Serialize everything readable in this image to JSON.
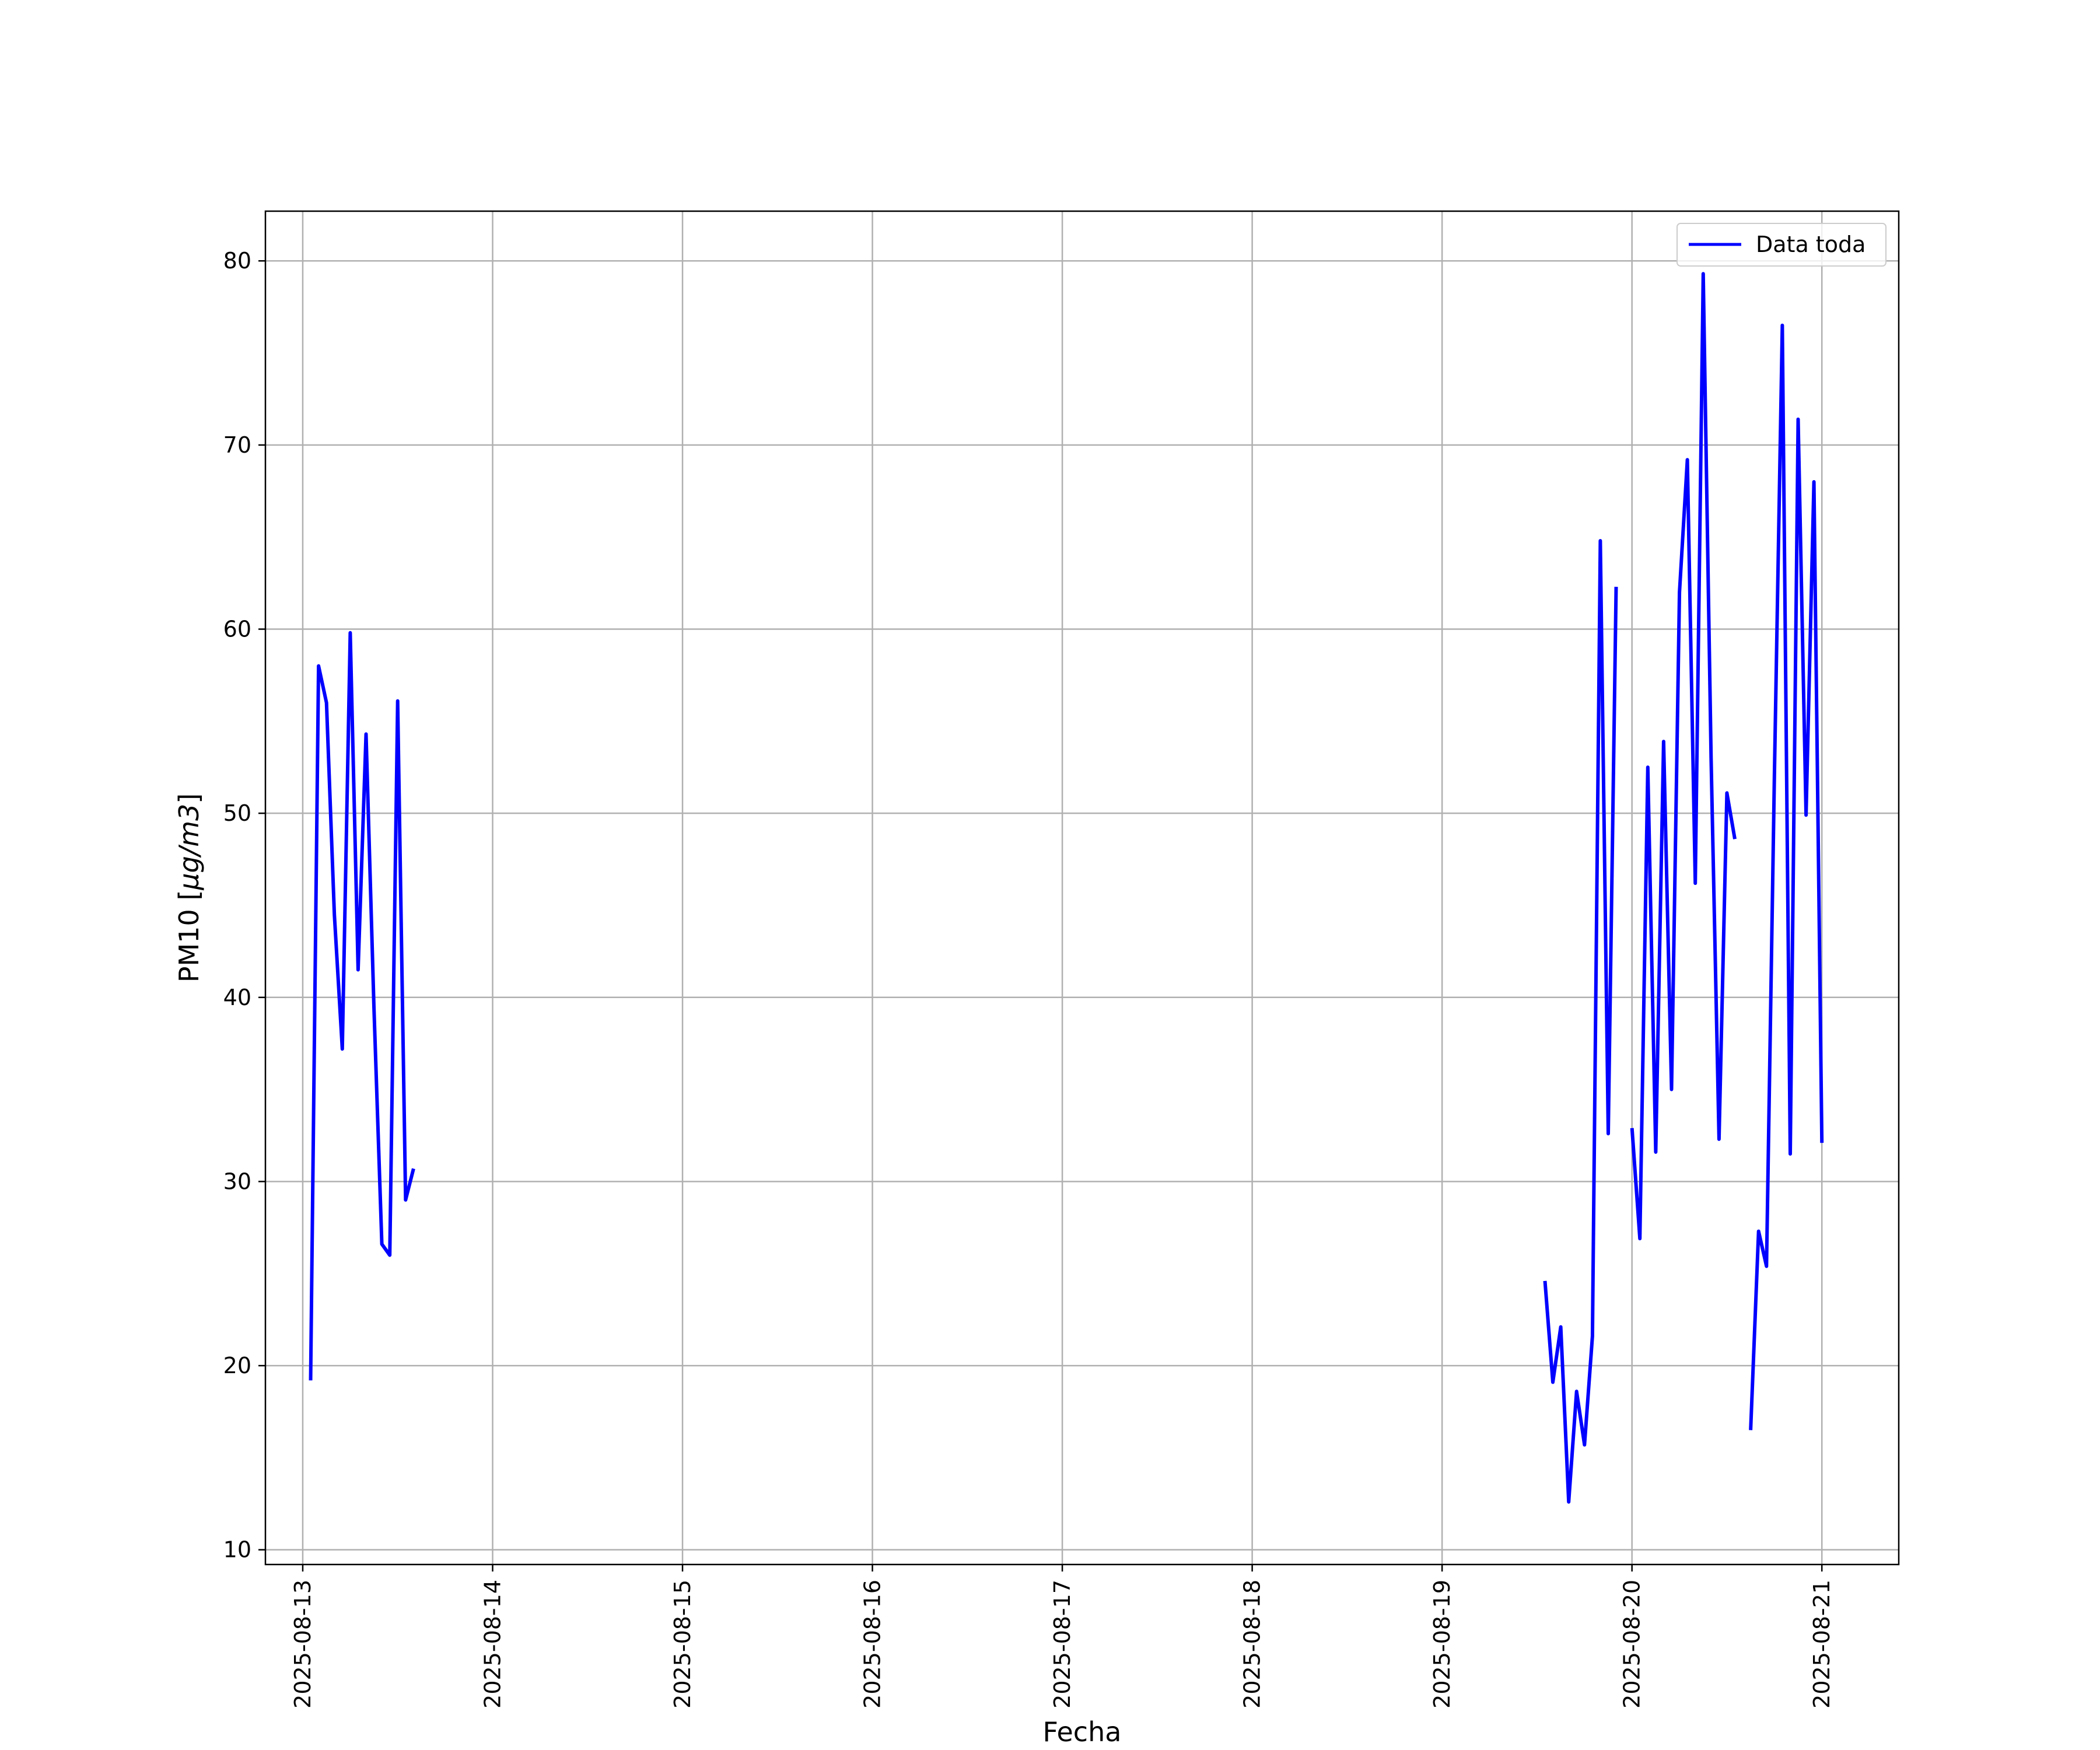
{
  "chart_data": {
    "type": "line",
    "xlabel": "Fecha",
    "ylabel": "PM10 [μg/m3]",
    "ylabel_prefix": "PM10 [",
    "ylabel_math": "μg/m3",
    "ylabel_suffix": "]",
    "xlim": [
      "2025-08-12T19:17",
      "2025-08-21T09:43"
    ],
    "ylim": [
      9.2,
      82.7
    ],
    "grid": true,
    "legend_position": "top-right",
    "x_ticks": [
      "2025-08-13",
      "2025-08-14",
      "2025-08-15",
      "2025-08-16",
      "2025-08-17",
      "2025-08-18",
      "2025-08-19",
      "2025-08-20",
      "2025-08-21"
    ],
    "y_ticks": [
      10,
      20,
      30,
      40,
      50,
      60,
      70,
      80
    ],
    "series": [
      {
        "name": "Data toda",
        "color": "#0000ff",
        "segments": [
          {
            "x": [
              "2025-08-13T01:00",
              "2025-08-13T02:00",
              "2025-08-13T03:00",
              "2025-08-13T04:00",
              "2025-08-13T05:00",
              "2025-08-13T06:00",
              "2025-08-13T07:00",
              "2025-08-13T08:00",
              "2025-08-13T09:00",
              "2025-08-13T10:00",
              "2025-08-13T11:00",
              "2025-08-13T12:00",
              "2025-08-13T13:00",
              "2025-08-13T14:00"
            ],
            "y": [
              19.2,
              58.0,
              56.0,
              44.5,
              37.2,
              59.8,
              41.5,
              54.3,
              39.5,
              26.6,
              26.0,
              56.1,
              29.0,
              30.7
            ]
          },
          {
            "x": [
              "2025-08-19T13:00",
              "2025-08-19T14:00",
              "2025-08-19T15:00",
              "2025-08-19T16:00",
              "2025-08-19T17:00",
              "2025-08-19T18:00",
              "2025-08-19T19:00",
              "2025-08-19T20:00",
              "2025-08-19T21:00",
              "2025-08-19T22:00"
            ],
            "y": [
              24.6,
              19.1,
              22.1,
              12.6,
              18.6,
              15.7,
              21.6,
              64.8,
              32.6,
              62.3
            ]
          },
          {
            "x": [
              "2025-08-20T00:00",
              "2025-08-20T01:00",
              "2025-08-20T02:00",
              "2025-08-20T03:00",
              "2025-08-20T04:00",
              "2025-08-20T05:00",
              "2025-08-20T06:00",
              "2025-08-20T07:00",
              "2025-08-20T08:00",
              "2025-08-20T09:00",
              "2025-08-20T10:00",
              "2025-08-20T11:00",
              "2025-08-20T12:00",
              "2025-08-20T13:00"
            ],
            "y": [
              32.9,
              26.9,
              52.5,
              31.6,
              53.9,
              35.0,
              62.0,
              69.2,
              46.2,
              79.3,
              53.0,
              32.3,
              51.1,
              48.6
            ]
          },
          {
            "x": [
              "2025-08-20T15:00",
              "2025-08-20T16:00",
              "2025-08-20T17:00",
              "2025-08-20T18:00",
              "2025-08-20T19:00",
              "2025-08-20T20:00",
              "2025-08-20T21:00",
              "2025-08-20T22:00",
              "2025-08-20T23:00",
              "2025-08-21T00:00"
            ],
            "y": [
              16.5,
              27.3,
              25.4,
              52.0,
              76.5,
              31.5,
              71.4,
              49.9,
              68.0,
              32.1
            ]
          }
        ]
      }
    ]
  }
}
